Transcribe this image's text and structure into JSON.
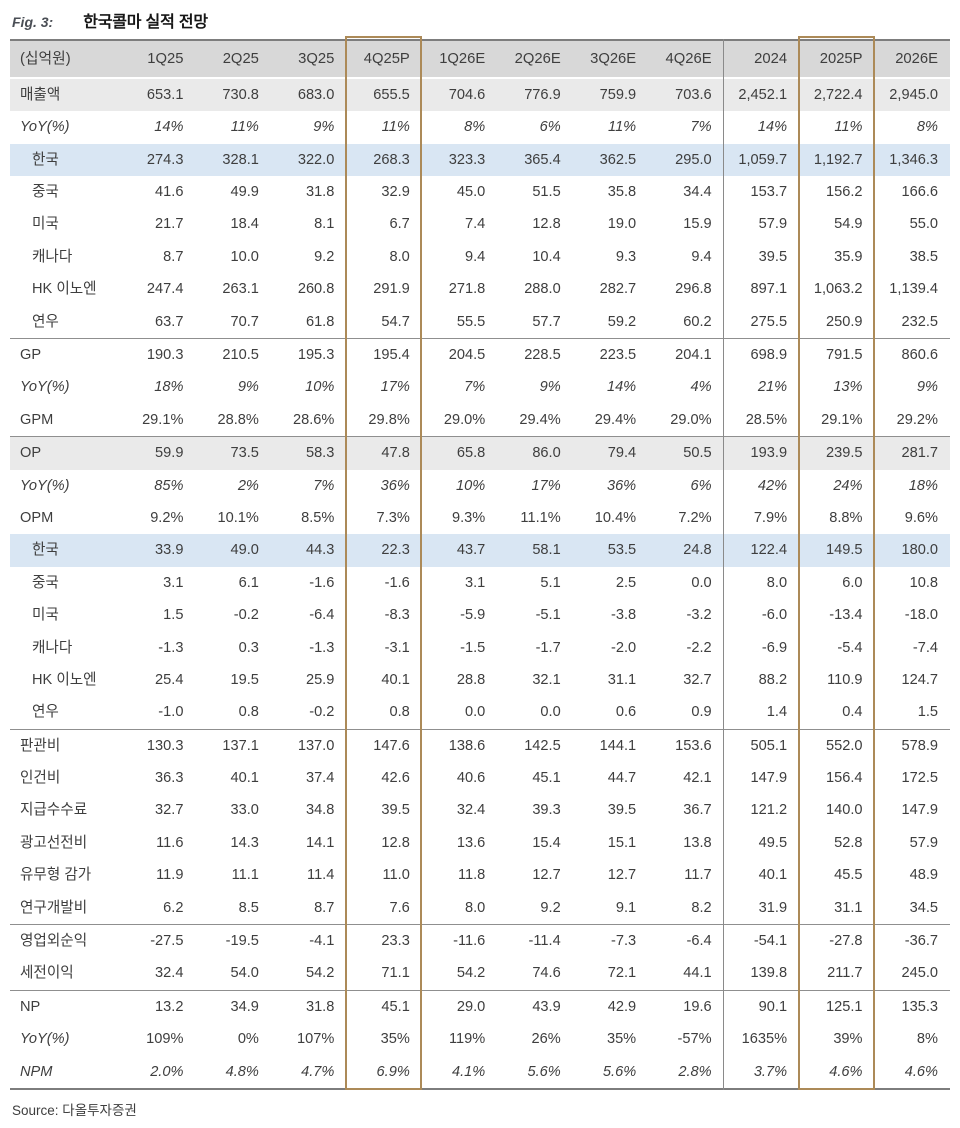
{
  "figure": {
    "tag": "Fig. 3:",
    "title": "한국콜마 실적 전망"
  },
  "source_note": "Source: 다올투자증권",
  "colors": {
    "header_bg": "#d8d8d8",
    "subtotal_row_bg": "#eaeaea",
    "korea_row_bg": "#d9e6f3",
    "highlight_border": "#ac8a58",
    "rule_line": "#8a8a8a",
    "text": "#3e3e3e"
  },
  "table": {
    "unit_label": "(십억원)",
    "columns": [
      "1Q25",
      "2Q25",
      "3Q25",
      "4Q25P",
      "1Q26E",
      "2Q26E",
      "3Q26E",
      "4Q26E",
      "2024",
      "2025P",
      "2026E"
    ],
    "highlight_columns": [
      "4Q25P",
      "2025P"
    ],
    "divider_before_column": "2024",
    "rows": [
      {
        "label": "매출액",
        "style": [
          "gray"
        ],
        "values": [
          "653.1",
          "730.8",
          "683.0",
          "655.5",
          "704.6",
          "776.9",
          "759.9",
          "703.6",
          "2,452.1",
          "2,722.4",
          "2,945.0"
        ]
      },
      {
        "label": "YoY(%)",
        "style": [
          "italic"
        ],
        "values": [
          "14%",
          "11%",
          "9%",
          "11%",
          "8%",
          "6%",
          "11%",
          "7%",
          "14%",
          "11%",
          "8%"
        ]
      },
      {
        "label": "한국",
        "style": [
          "blue",
          "indent"
        ],
        "values": [
          "274.3",
          "328.1",
          "322.0",
          "268.3",
          "323.3",
          "365.4",
          "362.5",
          "295.0",
          "1,059.7",
          "1,192.7",
          "1,346.3"
        ]
      },
      {
        "label": "중국",
        "style": [
          "indent"
        ],
        "values": [
          "41.6",
          "49.9",
          "31.8",
          "32.9",
          "45.0",
          "51.5",
          "35.8",
          "34.4",
          "153.7",
          "156.2",
          "166.6"
        ]
      },
      {
        "label": "미국",
        "style": [
          "indent"
        ],
        "values": [
          "21.7",
          "18.4",
          "8.1",
          "6.7",
          "7.4",
          "12.8",
          "19.0",
          "15.9",
          "57.9",
          "54.9",
          "55.0"
        ]
      },
      {
        "label": "캐나다",
        "style": [
          "indent"
        ],
        "values": [
          "8.7",
          "10.0",
          "9.2",
          "8.0",
          "9.4",
          "10.4",
          "9.3",
          "9.4",
          "39.5",
          "35.9",
          "38.5"
        ]
      },
      {
        "label": "HK 이노엔",
        "style": [
          "indent"
        ],
        "values": [
          "247.4",
          "263.1",
          "260.8",
          "291.9",
          "271.8",
          "288.0",
          "282.7",
          "296.8",
          "897.1",
          "1,063.2",
          "1,139.4"
        ]
      },
      {
        "label": "연우",
        "style": [
          "indent"
        ],
        "values": [
          "63.7",
          "70.7",
          "61.8",
          "54.7",
          "55.5",
          "57.7",
          "59.2",
          "60.2",
          "275.5",
          "250.9",
          "232.5"
        ]
      },
      {
        "label": "GP",
        "style": [
          "topline"
        ],
        "values": [
          "190.3",
          "210.5",
          "195.3",
          "195.4",
          "204.5",
          "228.5",
          "223.5",
          "204.1",
          "698.9",
          "791.5",
          "860.6"
        ]
      },
      {
        "label": "YoY(%)",
        "style": [
          "italic"
        ],
        "values": [
          "18%",
          "9%",
          "10%",
          "17%",
          "7%",
          "9%",
          "14%",
          "4%",
          "21%",
          "13%",
          "9%"
        ]
      },
      {
        "label": "GPM",
        "style": [],
        "values": [
          "29.1%",
          "28.8%",
          "28.6%",
          "29.8%",
          "29.0%",
          "29.4%",
          "29.4%",
          "29.0%",
          "28.5%",
          "29.1%",
          "29.2%"
        ]
      },
      {
        "label": "OP",
        "style": [
          "gray",
          "topline"
        ],
        "values": [
          "59.9",
          "73.5",
          "58.3",
          "47.8",
          "65.8",
          "86.0",
          "79.4",
          "50.5",
          "193.9",
          "239.5",
          "281.7"
        ]
      },
      {
        "label": "YoY(%)",
        "style": [
          "italic"
        ],
        "values": [
          "85%",
          "2%",
          "7%",
          "36%",
          "10%",
          "17%",
          "36%",
          "6%",
          "42%",
          "24%",
          "18%"
        ]
      },
      {
        "label": "OPM",
        "style": [],
        "values": [
          "9.2%",
          "10.1%",
          "8.5%",
          "7.3%",
          "9.3%",
          "11.1%",
          "10.4%",
          "7.2%",
          "7.9%",
          "8.8%",
          "9.6%"
        ]
      },
      {
        "label": "한국",
        "style": [
          "blue",
          "indent"
        ],
        "values": [
          "33.9",
          "49.0",
          "44.3",
          "22.3",
          "43.7",
          "58.1",
          "53.5",
          "24.8",
          "122.4",
          "149.5",
          "180.0"
        ]
      },
      {
        "label": "중국",
        "style": [
          "indent"
        ],
        "values": [
          "3.1",
          "6.1",
          "-1.6",
          "-1.6",
          "3.1",
          "5.1",
          "2.5",
          "0.0",
          "8.0",
          "6.0",
          "10.8"
        ]
      },
      {
        "label": "미국",
        "style": [
          "indent"
        ],
        "values": [
          "1.5",
          "-0.2",
          "-6.4",
          "-8.3",
          "-5.9",
          "-5.1",
          "-3.8",
          "-3.2",
          "-6.0",
          "-13.4",
          "-18.0"
        ]
      },
      {
        "label": "캐나다",
        "style": [
          "indent"
        ],
        "values": [
          "-1.3",
          "0.3",
          "-1.3",
          "-3.1",
          "-1.5",
          "-1.7",
          "-2.0",
          "-2.2",
          "-6.9",
          "-5.4",
          "-7.4"
        ]
      },
      {
        "label": "HK 이노엔",
        "style": [
          "indent"
        ],
        "values": [
          "25.4",
          "19.5",
          "25.9",
          "40.1",
          "28.8",
          "32.1",
          "31.1",
          "32.7",
          "88.2",
          "110.9",
          "124.7"
        ]
      },
      {
        "label": "연우",
        "style": [
          "indent"
        ],
        "values": [
          "-1.0",
          "0.8",
          "-0.2",
          "0.8",
          "0.0",
          "0.0",
          "0.6",
          "0.9",
          "1.4",
          "0.4",
          "1.5"
        ]
      },
      {
        "label": "판관비",
        "style": [
          "topline"
        ],
        "values": [
          "130.3",
          "137.1",
          "137.0",
          "147.6",
          "138.6",
          "142.5",
          "144.1",
          "153.6",
          "505.1",
          "552.0",
          "578.9"
        ]
      },
      {
        "label": "인건비",
        "style": [],
        "values": [
          "36.3",
          "40.1",
          "37.4",
          "42.6",
          "40.6",
          "45.1",
          "44.7",
          "42.1",
          "147.9",
          "156.4",
          "172.5"
        ]
      },
      {
        "label": "지급수수료",
        "style": [],
        "values": [
          "32.7",
          "33.0",
          "34.8",
          "39.5",
          "32.4",
          "39.3",
          "39.5",
          "36.7",
          "121.2",
          "140.0",
          "147.9"
        ]
      },
      {
        "label": "광고선전비",
        "style": [],
        "values": [
          "11.6",
          "14.3",
          "14.1",
          "12.8",
          "13.6",
          "15.4",
          "15.1",
          "13.8",
          "49.5",
          "52.8",
          "57.9"
        ]
      },
      {
        "label": "유무형 감가",
        "style": [],
        "values": [
          "11.9",
          "11.1",
          "11.4",
          "11.0",
          "11.8",
          "12.7",
          "12.7",
          "11.7",
          "40.1",
          "45.5",
          "48.9"
        ]
      },
      {
        "label": "연구개발비",
        "style": [],
        "values": [
          "6.2",
          "8.5",
          "8.7",
          "7.6",
          "8.0",
          "9.2",
          "9.1",
          "8.2",
          "31.9",
          "31.1",
          "34.5"
        ]
      },
      {
        "label": "영업외순익",
        "style": [
          "topline"
        ],
        "values": [
          "-27.5",
          "-19.5",
          "-4.1",
          "23.3",
          "-11.6",
          "-11.4",
          "-7.3",
          "-6.4",
          "-54.1",
          "-27.8",
          "-36.7"
        ]
      },
      {
        "label": "세전이익",
        "style": [],
        "values": [
          "32.4",
          "54.0",
          "54.2",
          "71.1",
          "54.2",
          "74.6",
          "72.1",
          "44.1",
          "139.8",
          "211.7",
          "245.0"
        ]
      },
      {
        "label": "NP",
        "style": [
          "topline"
        ],
        "values": [
          "13.2",
          "34.9",
          "31.8",
          "45.1",
          "29.0",
          "43.9",
          "42.9",
          "19.6",
          "90.1",
          "125.1",
          "135.3"
        ]
      },
      {
        "label": "YoY(%)",
        "style": [
          "label-italic"
        ],
        "values": [
          "109%",
          "0%",
          "107%",
          "35%",
          "119%",
          "26%",
          "35%",
          "-57%",
          "1635%",
          "39%",
          "8%"
        ]
      },
      {
        "label": "NPM",
        "style": [
          "italic"
        ],
        "values": [
          "2.0%",
          "4.8%",
          "4.7%",
          "6.9%",
          "4.1%",
          "5.6%",
          "5.6%",
          "2.8%",
          "3.7%",
          "4.6%",
          "4.6%"
        ]
      }
    ]
  }
}
